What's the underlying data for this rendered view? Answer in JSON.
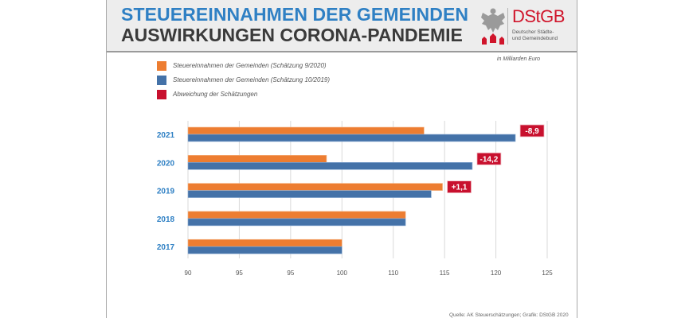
{
  "header": {
    "title_line1": "STEUEREINNAHMEN DER GEMEINDEN",
    "title_line2": "AUSWIRKUNGEN CORONA-PANDEMIE",
    "logo": {
      "name": "DStGB",
      "subtitle_line1": "Deutscher Städte-",
      "subtitle_line2": "und Gemeindebund",
      "icons": [
        "federal-eagle-icon",
        "town-houses-icon"
      ]
    }
  },
  "unit_note": "in Milliarden Euro",
  "source_note": "Quelle: AK Steuerschätzungen; Grafik: DStGB 2020",
  "colors": {
    "title_blue": "#2f80c4",
    "orange": "#ed7d31",
    "blue": "#4472a8",
    "red": "#c8102e",
    "grid": "#d9d9d9"
  },
  "chart_data": {
    "type": "bar",
    "orientation": "horizontal",
    "title": "Steuereinnahmen der Gemeinden – Auswirkungen Corona-Pandemie",
    "xlabel": "",
    "ylabel": "",
    "unit": "in Milliarden Euro",
    "categories": [
      "2021",
      "2020",
      "2019",
      "2018",
      "2017"
    ],
    "series": [
      {
        "name": "Steuereinnahmen der Gemeinden (Schätzung 9/2020)",
        "color": "#ed7d31",
        "values": [
          113.0,
          103.5,
          114.8,
          111.2,
          105.0
        ]
      },
      {
        "name": "Steuereinnahmen der Gemeinden (Schätzung 10/2019)",
        "color": "#4472a8",
        "values": [
          121.9,
          117.7,
          113.7,
          111.2,
          105.0
        ]
      }
    ],
    "annotations": [
      {
        "category": "2021",
        "label": "-8,9",
        "value": -8.9
      },
      {
        "category": "2020",
        "label": "-14,2",
        "value": -14.2
      },
      {
        "category": "2019",
        "label": "+1,1",
        "value": 1.1
      }
    ],
    "legend": [
      {
        "label": "Steuereinnahmen der Gemeinden (Schätzung 9/2020)",
        "color": "#ed7d31"
      },
      {
        "label": "Steuereinnahmen der Gemeinden (Schätzung 10/2019)",
        "color": "#4472a8"
      },
      {
        "label": "Abweichung der Schätzungen",
        "color": "#c8102e"
      }
    ],
    "legend_position": "top-left",
    "xlim": [
      90,
      125
    ],
    "x_tick_labels_printed": [
      "90",
      "95",
      "95",
      "100",
      "110",
      "115",
      "120",
      "125"
    ],
    "grid": true
  }
}
